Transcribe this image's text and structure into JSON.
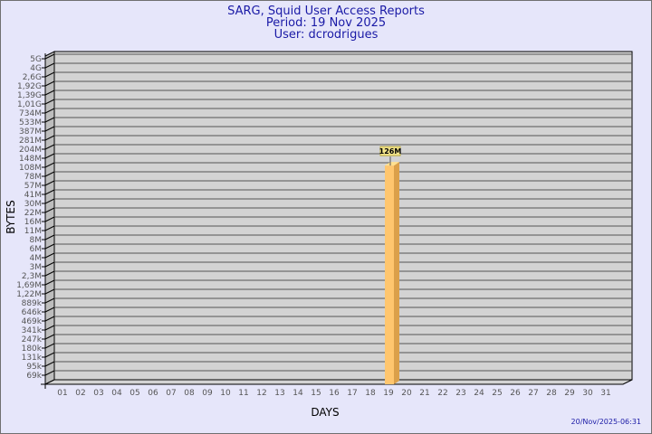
{
  "chart_data": {
    "type": "bar",
    "title": [
      "SARG, Squid User Access Reports",
      "Period: 19 Nov 2025",
      "User: dcrodrigues"
    ],
    "xlabel": "DAYS",
    "ylabel": "BYTES",
    "y_scale": "log",
    "y_tick_labels": [
      "5G",
      "4G",
      "2,6G",
      "1,92G",
      "1,39G",
      "1,01G",
      "734M",
      "533M",
      "387M",
      "281M",
      "204M",
      "148M",
      "108M",
      "78M",
      "57M",
      "41M",
      "30M",
      "22M",
      "16M",
      "11M",
      "8M",
      "6M",
      "4M",
      "3M",
      "2,3M",
      "1,69M",
      "1,22M",
      "889k",
      "646k",
      "469k",
      "341k",
      "247k",
      "180k",
      "131k",
      "95k",
      "69k"
    ],
    "categories": [
      "01",
      "02",
      "03",
      "04",
      "05",
      "06",
      "07",
      "08",
      "09",
      "10",
      "11",
      "12",
      "13",
      "14",
      "15",
      "16",
      "17",
      "18",
      "19",
      "20",
      "21",
      "22",
      "23",
      "24",
      "25",
      "26",
      "27",
      "28",
      "29",
      "30",
      "31"
    ],
    "bars": [
      {
        "day": "19",
        "value_label": "126M"
      }
    ],
    "grid": true,
    "colors": {
      "background": "#e6e6fa",
      "plot": "#d3d3d3",
      "bar_front": "#ffc66e",
      "bar_side": "#dba04a",
      "bar_top": "#ffe08e",
      "label_box": "#f4e68c",
      "text": "#1a1aa6"
    }
  },
  "footer": {
    "timestamp": "20/Nov/2025-06:31"
  }
}
